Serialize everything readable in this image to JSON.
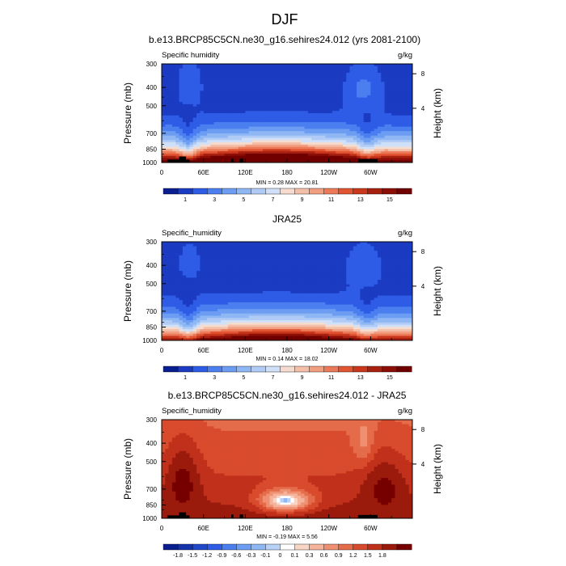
{
  "figure": {
    "title": "DJF"
  },
  "axes": {
    "xticks": [
      "0",
      "60E",
      "120E",
      "180",
      "120W",
      "60W"
    ],
    "x_range": [
      0,
      360
    ],
    "yticks": [
      "300",
      "400",
      "500",
      "700",
      "850",
      "1000"
    ],
    "y_range": [
      300,
      1000
    ],
    "ylabel": "Pressure (mb)",
    "y2label": "Height (km)",
    "y2ticks": [
      "8",
      "4"
    ]
  },
  "chart_data": [
    {
      "type": "heatmap",
      "title": "b.e13.BRCP85C5CN.ne30_g16.sehires24.012 (yrs 2081-2100)",
      "left_label": "Specific humidity",
      "right_label": "g/kg",
      "stats": "MIN = 0.28 MAX = 20.81",
      "min": 0.28,
      "max": 20.81,
      "colorbar_labels": [
        "1",
        "3",
        "5",
        "7",
        "9",
        "11",
        "13",
        "15"
      ],
      "colorbar_colors": [
        "#0a1f8f",
        "#1b3bc2",
        "#2e5ce6",
        "#4b7ff0",
        "#6d9df2",
        "#8fb7f4",
        "#b0ccf6",
        "#d0e0f8",
        "#f6dccf",
        "#f4bfa8",
        "#f29e80",
        "#ec7a58",
        "#e25533",
        "#c9371c",
        "#a82010",
        "#8c0e06",
        "#700000"
      ],
      "profile": "future",
      "blackout": true
    },
    {
      "type": "heatmap",
      "title": "JRA25",
      "left_label": "Specific_humidity",
      "right_label": "g/kg",
      "stats": "MIN = 0.14 MAX = 18.02",
      "min": 0.14,
      "max": 18.02,
      "colorbar_labels": [
        "1",
        "3",
        "5",
        "7",
        "9",
        "11",
        "13",
        "15"
      ],
      "colorbar_colors": [
        "#0a1f8f",
        "#1b3bc2",
        "#2e5ce6",
        "#4b7ff0",
        "#6d9df2",
        "#8fb7f4",
        "#b0ccf6",
        "#d0e0f8",
        "#f6dccf",
        "#f4bfa8",
        "#f29e80",
        "#ec7a58",
        "#e25533",
        "#c9371c",
        "#a82010",
        "#8c0e06",
        "#700000"
      ],
      "profile": "obs",
      "blackout": false
    },
    {
      "type": "heatmap",
      "title": "b.e13.BRCP85C5CN.ne30_g16.sehires24.012 - JRA25",
      "left_label": "Specific_humidity",
      "right_label": "g/kg",
      "stats": "MIN = -0.19 MAX = 5.56",
      "min": -0.19,
      "max": 5.56,
      "colorbar_labels": [
        "-1.8",
        "-1.5",
        "-1.2",
        "-0.9",
        "-0.6",
        "-0.3",
        "-0.1",
        "0",
        "0.1",
        "0.3",
        "0.6",
        "0.9",
        "1.2",
        "1.5",
        "1.8"
      ],
      "colorbar_colors": [
        "#0a1f8f",
        "#1533aa",
        "#2048c8",
        "#2e5ce6",
        "#4b7ff0",
        "#6d9df2",
        "#8fb7f4",
        "#b8d2f7",
        "#ffffff",
        "#f8d5c5",
        "#f4b39a",
        "#ef9072",
        "#e56c4b",
        "#d84b2c",
        "#c0301a",
        "#9a1a0c",
        "#760000"
      ],
      "profile": "diff",
      "blackout": true
    }
  ]
}
